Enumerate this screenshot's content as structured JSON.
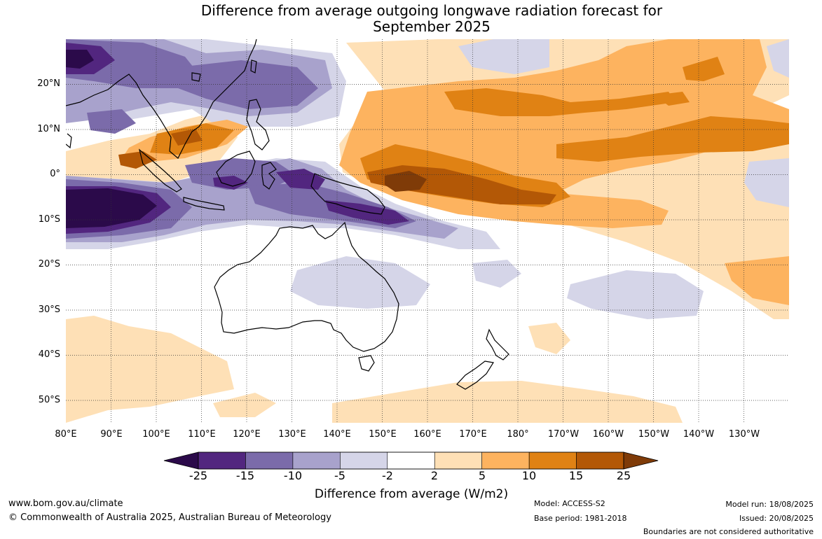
{
  "title_line1": "Difference from average outgoing longwave radiation forecast for",
  "title_line2": "September 2025",
  "lat_labels": [
    "20°N",
    "10°N",
    "0°",
    "10°S",
    "20°S",
    "30°S",
    "40°S",
    "50°S"
  ],
  "lon_labels": [
    "80°E",
    "90°E",
    "100°E",
    "110°E",
    "120°E",
    "130°E",
    "140°E",
    "150°E",
    "160°E",
    "170°E",
    "180°",
    "170°W",
    "160°W",
    "150°W",
    "140°W",
    "130°W"
  ],
  "colorbar": {
    "ticks": [
      "-25",
      "-15",
      "-10",
      "-5",
      "-2",
      "2",
      "5",
      "10",
      "15",
      "25"
    ],
    "colors": [
      "#2b0a4a",
      "#52267f",
      "#7b6baa",
      "#a8a2cc",
      "#d5d5e8",
      "#ffffff",
      "#fee0b6",
      "#fdb35f",
      "#e08214",
      "#b35806",
      "#7f3b08"
    ],
    "label": "Difference from average (W/m2)"
  },
  "footer": {
    "website": "www.bom.gov.au/climate",
    "copyright": "© Commonwealth of Australia 2025, Australian Bureau of Meteorology",
    "model": "Model: ACCESS-S2",
    "base_period": "Base period: 1981-2018",
    "model_run": "Model run: 18/08/2025",
    "issued": "Issued: 20/08/2025",
    "boundaries": "Boundaries are not considered authoritative"
  }
}
